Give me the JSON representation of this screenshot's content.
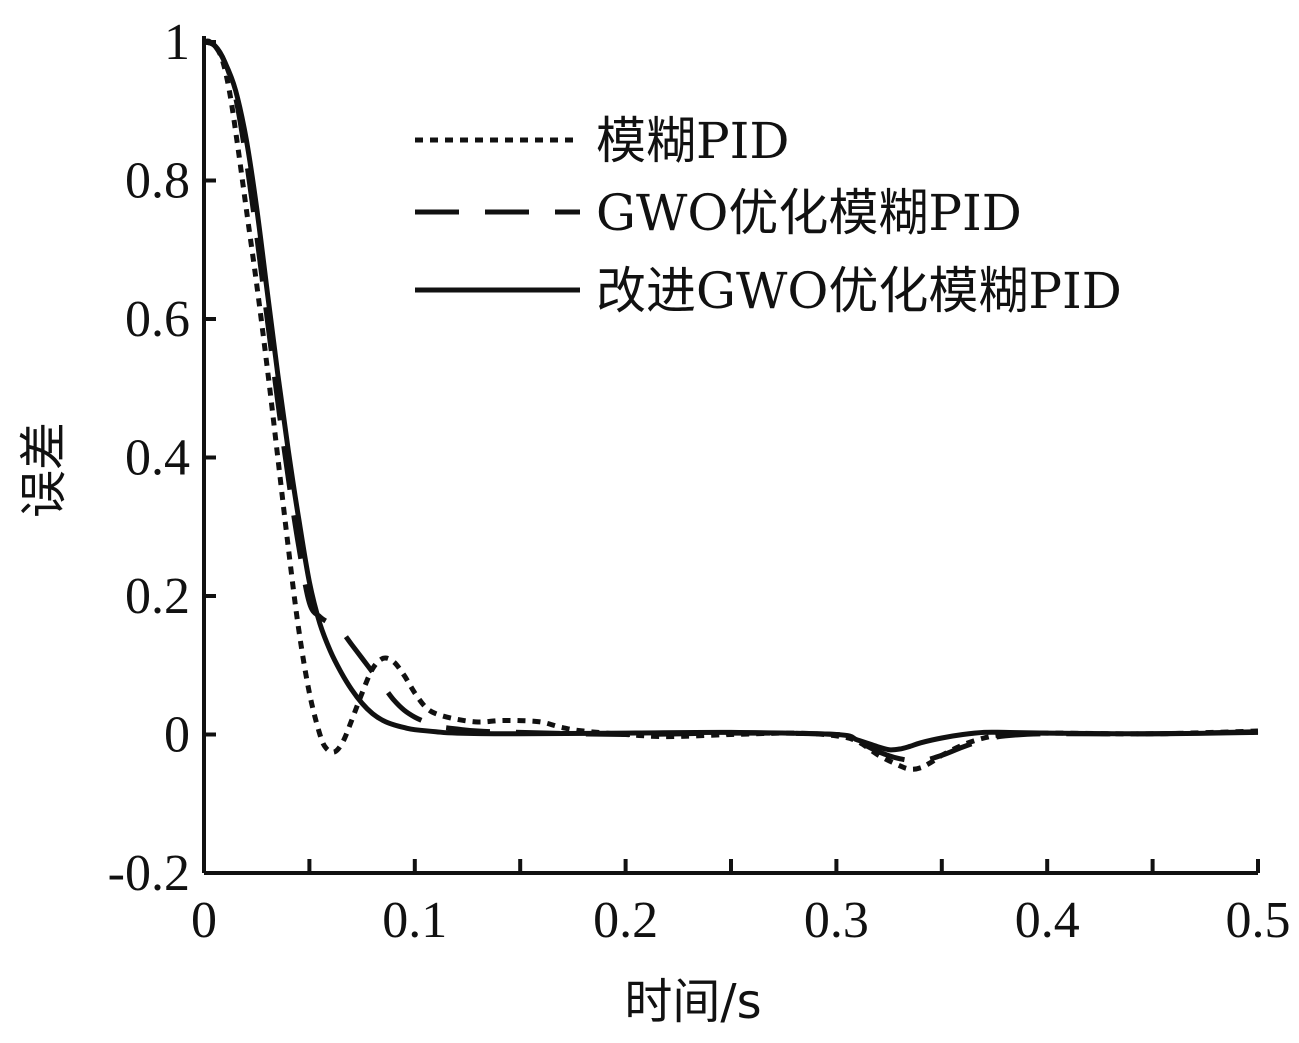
{
  "chart_data": {
    "type": "line",
    "title": "",
    "xlabel": "时间/s",
    "ylabel": "误差",
    "xlim": [
      0,
      0.5
    ],
    "ylim": [
      -0.2,
      1
    ],
    "xticks": [
      0,
      0.05,
      0.1,
      0.15,
      0.2,
      0.25,
      0.3,
      0.35,
      0.4,
      0.45,
      0.5
    ],
    "xtick_labels": [
      "0",
      "",
      "0.1",
      "",
      "0.2",
      "",
      "0.3",
      "",
      "0.4",
      "",
      "0.5"
    ],
    "yticks": [
      -0.2,
      0,
      0.2,
      0.4,
      0.6,
      0.8,
      1
    ],
    "ytick_labels": [
      "-0.2",
      "0",
      "0.2",
      "0.4",
      "0.6",
      "0.8",
      "1"
    ],
    "grid": false,
    "legend_position": "top-right",
    "series": [
      {
        "name": "模糊PID",
        "style": "dotted",
        "color": "#111111",
        "x": [
          0,
          0.003,
          0.008,
          0.012,
          0.016,
          0.02,
          0.025,
          0.03,
          0.035,
          0.04,
          0.045,
          0.05,
          0.055,
          0.058,
          0.062,
          0.066,
          0.07,
          0.075,
          0.08,
          0.085,
          0.09,
          0.095,
          0.1,
          0.105,
          0.11,
          0.12,
          0.13,
          0.14,
          0.15,
          0.16,
          0.17,
          0.18,
          0.2,
          0.22,
          0.25,
          0.28,
          0.3,
          0.31,
          0.32,
          0.33,
          0.335,
          0.34,
          0.345,
          0.35,
          0.36,
          0.37,
          0.38,
          0.4,
          0.45,
          0.5
        ],
        "y": [
          1,
          1,
          0.98,
          0.93,
          0.85,
          0.76,
          0.65,
          0.53,
          0.4,
          0.27,
          0.15,
          0.06,
          0.0,
          -0.02,
          -0.025,
          -0.01,
          0.02,
          0.06,
          0.095,
          0.11,
          0.105,
          0.085,
          0.06,
          0.04,
          0.03,
          0.022,
          0.018,
          0.02,
          0.02,
          0.018,
          0.01,
          0.005,
          0.0,
          -0.003,
          0.0,
          0.002,
          -0.002,
          -0.01,
          -0.03,
          -0.045,
          -0.05,
          -0.048,
          -0.04,
          -0.03,
          -0.015,
          -0.005,
          0.0,
          0.002,
          0.001,
          0.005
        ]
      },
      {
        "name": "GWO优化模糊PID",
        "style": "dashed",
        "color": "#111111",
        "x": [
          0,
          0.005,
          0.01,
          0.015,
          0.02,
          0.025,
          0.03,
          0.035,
          0.04,
          0.045,
          0.05,
          0.055,
          0.06,
          0.065,
          0.07,
          0.075,
          0.08,
          0.085,
          0.09,
          0.095,
          0.1,
          0.105,
          0.11,
          0.12,
          0.13,
          0.15,
          0.2,
          0.25,
          0.3,
          0.31,
          0.32,
          0.33,
          0.34,
          0.35,
          0.36,
          0.37,
          0.38,
          0.4,
          0.45,
          0.5
        ],
        "y": [
          1,
          0.995,
          0.97,
          0.92,
          0.83,
          0.72,
          0.6,
          0.48,
          0.37,
          0.27,
          0.19,
          0.17,
          0.16,
          0.15,
          0.13,
          0.11,
          0.09,
          0.07,
          0.05,
          0.035,
          0.025,
          0.018,
          0.012,
          0.008,
          0.005,
          0.003,
          0.0,
          0.002,
          0.0,
          -0.01,
          -0.025,
          -0.035,
          -0.038,
          -0.03,
          -0.018,
          -0.008,
          -0.002,
          0.001,
          0.001,
          0.004
        ]
      },
      {
        "name": "改进GWO优化模糊PID",
        "style": "solid",
        "color": "#111111",
        "x": [
          0,
          0.005,
          0.01,
          0.015,
          0.02,
          0.025,
          0.03,
          0.035,
          0.04,
          0.045,
          0.05,
          0.055,
          0.06,
          0.065,
          0.07,
          0.075,
          0.08,
          0.085,
          0.09,
          0.095,
          0.1,
          0.11,
          0.12,
          0.15,
          0.2,
          0.25,
          0.3,
          0.31,
          0.32,
          0.325,
          0.33,
          0.335,
          0.34,
          0.35,
          0.36,
          0.37,
          0.38,
          0.4,
          0.45,
          0.5
        ],
        "y": [
          1,
          0.995,
          0.97,
          0.93,
          0.86,
          0.76,
          0.64,
          0.52,
          0.41,
          0.31,
          0.22,
          0.16,
          0.12,
          0.09,
          0.065,
          0.045,
          0.03,
          0.02,
          0.014,
          0.01,
          0.007,
          0.004,
          0.002,
          0.001,
          0.002,
          0.003,
          0.0,
          -0.008,
          -0.018,
          -0.022,
          -0.021,
          -0.017,
          -0.012,
          -0.005,
          0.0,
          0.003,
          0.003,
          0.002,
          0.001,
          0.003
        ]
      }
    ]
  }
}
